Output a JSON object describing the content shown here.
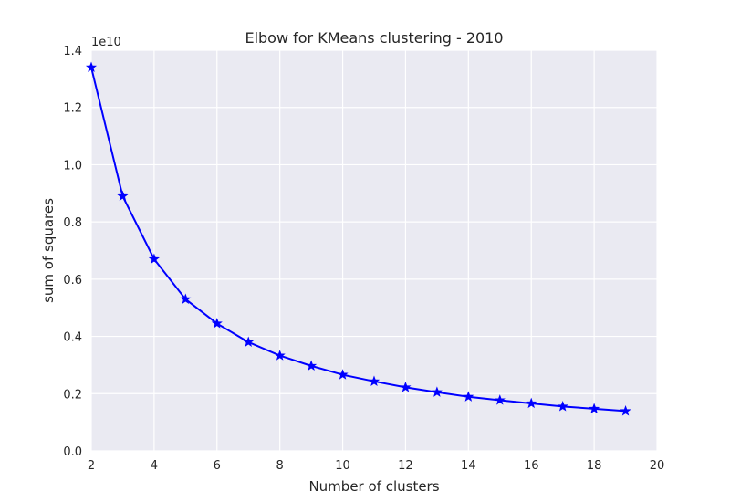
{
  "chart_data": {
    "type": "line",
    "title": "Elbow for KMeans clustering - 2010",
    "xlabel": "Number of clusters",
    "ylabel": "sum of squares",
    "y_scale_label": "1e10",
    "xlim": [
      2,
      20
    ],
    "ylim": [
      0.0,
      1.4
    ],
    "x_ticks": [
      2,
      4,
      6,
      8,
      10,
      12,
      14,
      16,
      18,
      20
    ],
    "x_tick_labels": [
      "2",
      "4",
      "6",
      "8",
      "10",
      "12",
      "14",
      "16",
      "18",
      "20"
    ],
    "y_ticks": [
      0.0,
      0.2,
      0.4,
      0.6,
      0.8,
      1.0,
      1.2,
      1.4
    ],
    "y_tick_labels": [
      "0.0",
      "0.2",
      "0.4",
      "0.6",
      "0.8",
      "1.0",
      "1.2",
      "1.4"
    ],
    "grid": true,
    "series": [
      {
        "color": "#0000ff",
        "marker": "star",
        "x": [
          2,
          3,
          4,
          5,
          6,
          7,
          8,
          9,
          10,
          11,
          12,
          13,
          14,
          15,
          16,
          17,
          18,
          19
        ],
        "y": [
          1.34,
          0.89,
          0.67,
          0.53,
          0.445,
          0.38,
          0.333,
          0.297,
          0.266,
          0.243,
          0.222,
          0.205,
          0.189,
          0.177,
          0.166,
          0.155,
          0.147,
          0.139
        ]
      }
    ],
    "colors": {
      "plot_background": "#eaeaf2",
      "grid": "#ffffff",
      "line": "#0000ff"
    }
  }
}
